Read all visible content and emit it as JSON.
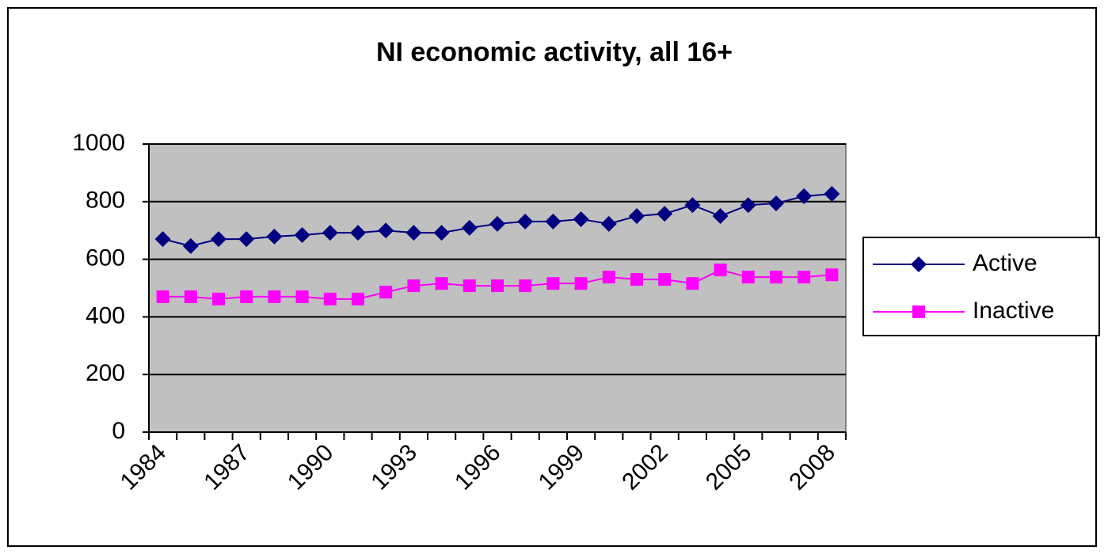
{
  "chart_data": {
    "type": "line",
    "title": "NI economic activity, all 16+",
    "categories": [
      "1984",
      null,
      null,
      "1987",
      null,
      null,
      "1990",
      null,
      null,
      "1993",
      null,
      null,
      "1996",
      null,
      null,
      "1999",
      null,
      null,
      "2002",
      null,
      null,
      "2005",
      null,
      null,
      "2008"
    ],
    "series": [
      {
        "name": "Active",
        "color": "#000080",
        "marker": "diamond",
        "values": [
          670,
          646,
          670,
          670,
          679,
          684,
          692,
          692,
          700,
          692,
          692,
          709,
          723,
          731,
          731,
          739,
          723,
          750,
          758,
          788,
          750,
          788,
          794,
          819,
          827
        ]
      },
      {
        "name": "Inactive",
        "color": "#ff00ff",
        "marker": "square",
        "values": [
          470,
          470,
          462,
          470,
          470,
          470,
          462,
          462,
          486,
          508,
          516,
          508,
          508,
          508,
          516,
          516,
          538,
          530,
          530,
          516,
          563,
          538,
          538,
          538,
          546
        ]
      }
    ],
    "ylim": [
      0,
      1000
    ],
    "yticks": [
      0,
      200,
      400,
      600,
      800,
      1000
    ],
    "grid": true,
    "legend": "right"
  }
}
